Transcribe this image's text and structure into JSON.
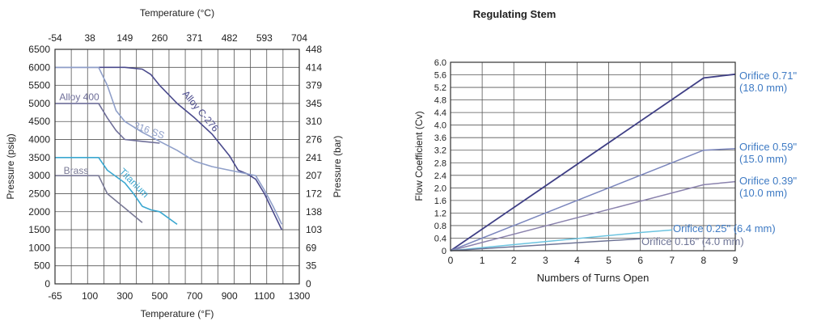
{
  "chart_data": [
    {
      "type": "line",
      "title": "",
      "xlabel": "Temperature (°F)",
      "ylabel": "Pressure (psig)",
      "xlabel_top": "Temperature (°C)",
      "ylabel_right": "Pressure (bar)",
      "xlim": [
        -65,
        1300
      ],
      "ylim": [
        0,
        6500
      ],
      "grid": true,
      "x_ticks": [
        -65,
        100,
        300,
        500,
        700,
        900,
        1100,
        1300
      ],
      "x_tick_labels": [
        "-65",
        "100",
        "300",
        "500",
        "700",
        "900",
        "1100",
        "1300"
      ],
      "y_ticks": [
        0,
        500,
        1000,
        1500,
        2000,
        2500,
        3000,
        3500,
        4000,
        4500,
        5000,
        5500,
        6000,
        6500
      ],
      "y_tick_labels": [
        "0",
        "500",
        "1000",
        "1500",
        "2000",
        "2500",
        "3000",
        "3500",
        "4000",
        "4500",
        "5000",
        "5500",
        "6000",
        "6500"
      ],
      "top_tick_labels": [
        "-54",
        "38",
        "149",
        "260",
        "371",
        "482",
        "593",
        "704"
      ],
      "right_tick_labels": [
        "0",
        "35",
        "69",
        "103",
        "138",
        "172",
        "207",
        "241",
        "276",
        "310",
        "345",
        "379",
        "414",
        "448"
      ],
      "series": [
        {
          "name": "Alloy C-276",
          "color": "#4a4a8c",
          "x": [
            -65,
            100,
            200,
            300,
            400,
            450,
            500,
            600,
            700,
            800,
            900,
            950,
            1000,
            1050,
            1100,
            1150,
            1200
          ],
          "y": [
            6000,
            6000,
            6000,
            6000,
            5950,
            5800,
            5500,
            5000,
            4600,
            4150,
            3550,
            3150,
            3050,
            2900,
            2500,
            2000,
            1500
          ]
        },
        {
          "name": "316 SS",
          "color": "#8f9fc9",
          "x": [
            -65,
            100,
            150,
            200,
            250,
            300,
            400,
            500,
            600,
            700,
            800,
            900,
            1000,
            1050,
            1100,
            1150,
            1200
          ],
          "y": [
            6000,
            6000,
            6000,
            5500,
            4800,
            4500,
            4200,
            3950,
            3700,
            3400,
            3250,
            3150,
            3050,
            3000,
            2600,
            2150,
            1650
          ]
        },
        {
          "name": "Alloy 400",
          "color": "#6f6f99",
          "x": [
            -65,
            100,
            150,
            200,
            250,
            300,
            400,
            500
          ],
          "y": [
            5000,
            5000,
            5000,
            4600,
            4250,
            4000,
            3950,
            3900
          ]
        },
        {
          "name": "Titanium",
          "color": "#3aa7d0",
          "x": [
            -65,
            100,
            150,
            200,
            300,
            350,
            400,
            450,
            500,
            600
          ],
          "y": [
            3500,
            3500,
            3500,
            3150,
            2800,
            2500,
            2150,
            2050,
            2000,
            1650
          ]
        },
        {
          "name": "Brass",
          "color": "#7a7a96",
          "x": [
            -65,
            100,
            150,
            200,
            300,
            400
          ],
          "y": [
            3000,
            3000,
            3000,
            2500,
            2100,
            1700
          ]
        }
      ]
    },
    {
      "type": "line",
      "title": "Regulating Stem",
      "xlabel": "Numbers of Turns Open",
      "ylabel": "Flow Coefficient (Cv)",
      "xlim": [
        0,
        9
      ],
      "ylim": [
        0,
        6.0
      ],
      "grid": true,
      "x_ticks": [
        0,
        1,
        2,
        3,
        4,
        5,
        6,
        7,
        8,
        9
      ],
      "x_tick_labels": [
        "0",
        "1",
        "2",
        "3",
        "4",
        "5",
        "6",
        "7",
        "8",
        "9"
      ],
      "y_ticks": [
        0,
        0.4,
        0.8,
        1.2,
        1.6,
        2.0,
        2.4,
        2.8,
        3.2,
        3.6,
        4.0,
        4.4,
        4.8,
        5.2,
        5.6,
        6.0
      ],
      "y_tick_labels": [
        "0",
        "0.4",
        "0.8",
        "1.2",
        "1.6",
        "2.0",
        "2.4",
        "2.8",
        "3.2",
        "3.6",
        "4.0",
        "4.4",
        "4.8",
        "5.2",
        "5.6",
        "6.0"
      ],
      "series": [
        {
          "name": "Orifice 0.71\" (18.0 mm)",
          "label_lines": [
            "Orifice 0.71\"",
            "(18.0 mm)"
          ],
          "color": "#3f3f85",
          "x": [
            0,
            8,
            9
          ],
          "y": [
            0,
            5.5,
            5.62
          ]
        },
        {
          "name": "Orifice 0.59\" (15.0 mm)",
          "label_lines": [
            "Orifice 0.59\"",
            "(15.0 mm)"
          ],
          "color": "#7b86bd",
          "x": [
            0,
            8,
            9
          ],
          "y": [
            0,
            3.2,
            3.25
          ]
        },
        {
          "name": "Orifice 0.39\" (10.0 mm)",
          "label_lines": [
            "Orifice 0.39\"",
            "(10.0 mm)"
          ],
          "color": "#8a82ad",
          "x": [
            0,
            8,
            9
          ],
          "y": [
            0,
            2.1,
            2.2
          ]
        },
        {
          "name": "Orifice 0.25\" (6.4 mm)",
          "label_lines": [
            "Orifice 0.25\" (6.4 mm)"
          ],
          "color": "#6cc4e0",
          "x": [
            0,
            6,
            7
          ],
          "y": [
            0,
            0.58,
            0.66
          ]
        },
        {
          "name": "Orifice 0.16\" (4.0 mm)",
          "label_lines": [
            "Orifice 0.16\" (4.0 mm)"
          ],
          "color": "#6e7496",
          "x": [
            0,
            6
          ],
          "y": [
            0,
            0.38
          ]
        }
      ]
    }
  ]
}
